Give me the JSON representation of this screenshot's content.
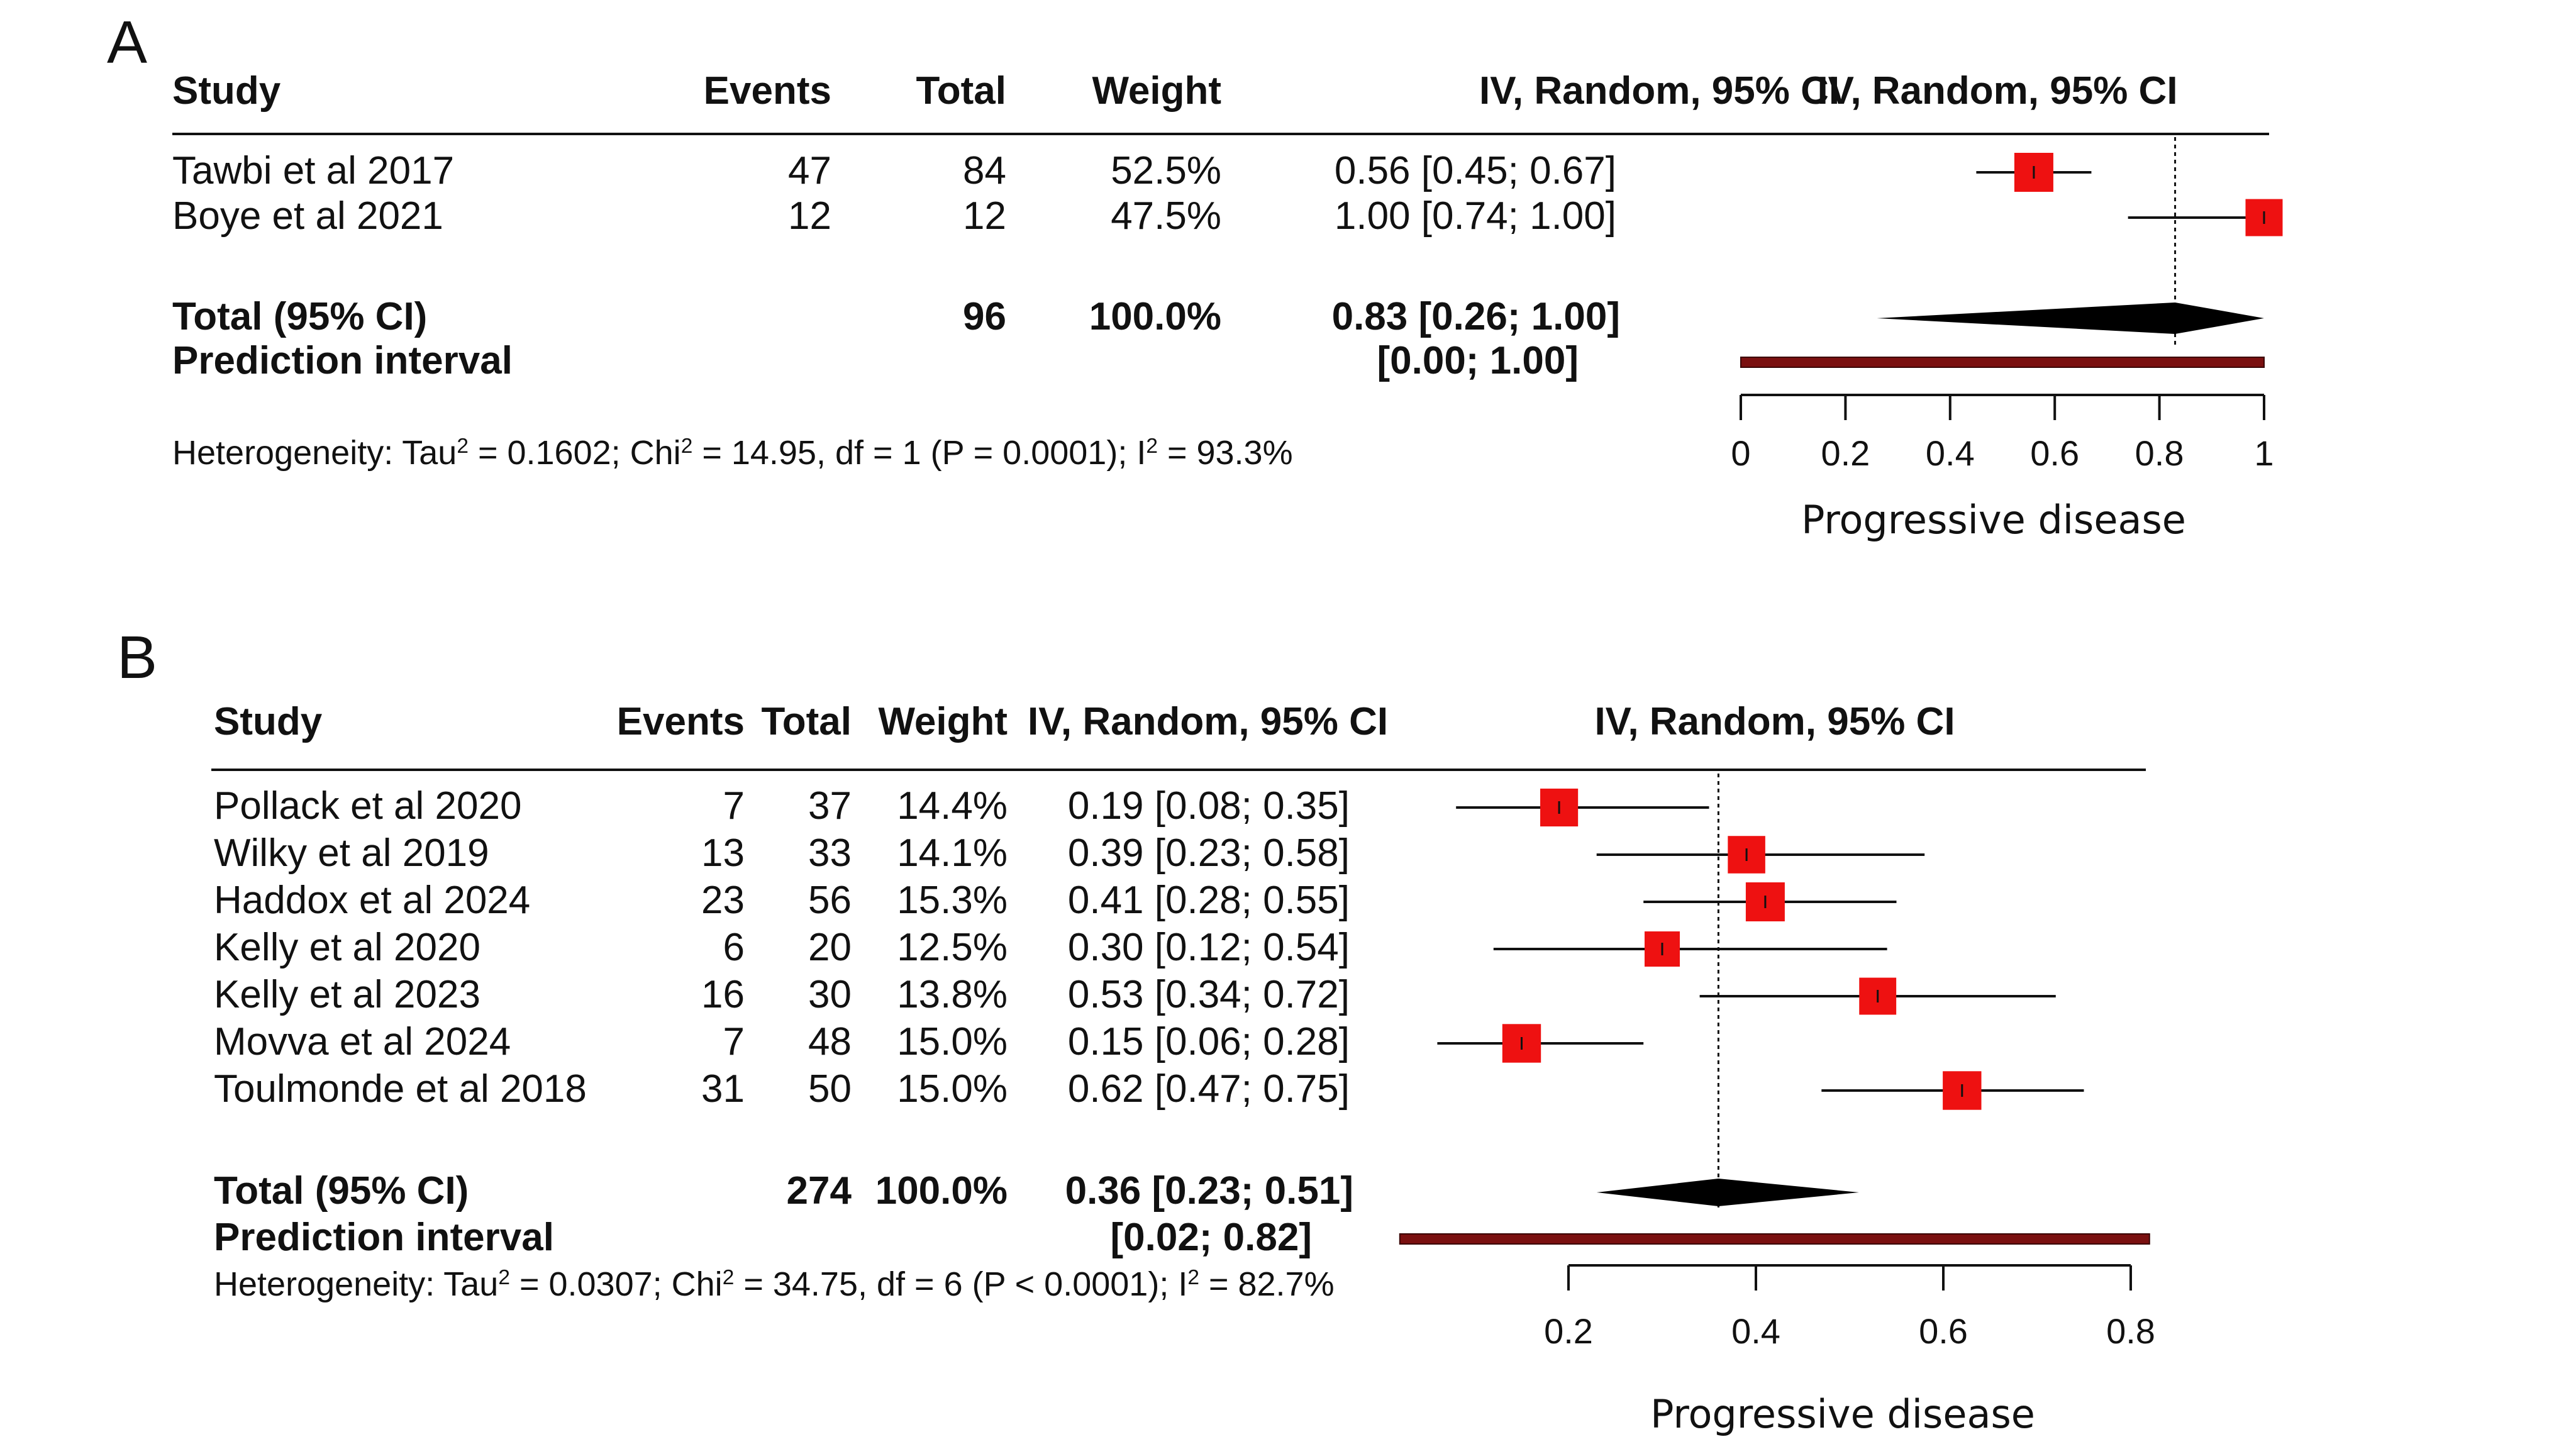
{
  "panels": [
    {
      "letter": "A",
      "headers": {
        "study": "Study",
        "events": "Events",
        "total": "Total",
        "weight": "Weight",
        "ci": "IV, Random, 95% CI",
        "plot": "IV, Random, 95% CI"
      },
      "heterogeneity": {
        "p1": "Heterogeneity: Tau",
        "sup1": "2",
        "p2": " = 0.1602; Chi",
        "sup2": "2",
        "p3": " = 14.95, df = 1 (P = 0.0001); I",
        "sup3": "2",
        "p4": " = 93.3%"
      }
    },
    {
      "letter": "B",
      "headers": {
        "study": "Study",
        "events": "Events",
        "total": "Total",
        "weight": "Weight",
        "ci": "IV, Random, 95% CI",
        "plot": "IV, Random, 95% CI"
      },
      "heterogeneity": {
        "p1": "Heterogeneity: Tau",
        "sup1": "2",
        "p2": " = 0.0307; Chi",
        "sup2": "2",
        "p3": " = 34.75, df = 6 (P < 0.0001); I",
        "sup3": "2",
        "p4": " = 82.7%"
      }
    }
  ],
  "chart_data": [
    {
      "type": "forest",
      "panel": "A",
      "xlabel": "Progressive disease",
      "xlim": [
        0,
        1
      ],
      "ticks": [
        0,
        0.2,
        0.4,
        0.6,
        0.8,
        1
      ],
      "tick_labels": [
        "0",
        "0.2",
        "0.4",
        "0.6",
        "0.8",
        "1"
      ],
      "reference_line": 0.83,
      "studies": [
        {
          "study": "Tawbi et al 2017",
          "events": "47",
          "total": "84",
          "weight": "52.5%",
          "ci_text": "0.56 [0.45; 0.67]",
          "est": 0.56,
          "lo": 0.45,
          "hi": 0.67,
          "w": 52.5
        },
        {
          "study": "Boye et al 2021",
          "events": "12",
          "total": "12",
          "weight": "47.5%",
          "ci_text": "1.00 [0.74; 1.00]",
          "est": 1.0,
          "lo": 0.74,
          "hi": 1.0,
          "w": 47.5
        }
      ],
      "pooled": {
        "label": "Total (95% CI)",
        "total": "96",
        "weight": "100.0%",
        "ci_text": "0.83 [0.26; 1.00]",
        "est": 0.83,
        "lo": 0.26,
        "hi": 1.0
      },
      "prediction": {
        "label": "Prediction interval",
        "ci_text": "[0.00; 1.00]",
        "lo": 0.0,
        "hi": 1.0
      },
      "colors": {
        "square": "#ee1111",
        "prediction": "#7a1010",
        "diamond": "#000000"
      }
    },
    {
      "type": "forest",
      "panel": "B",
      "xlabel": "Progressive disease",
      "xlim": [
        0.2,
        0.8
      ],
      "ticks": [
        0.2,
        0.4,
        0.6,
        0.8
      ],
      "tick_labels": [
        "0.2",
        "0.4",
        "0.6",
        "0.8"
      ],
      "reference_line": 0.36,
      "studies": [
        {
          "study": "Pollack et al 2020",
          "events": "7",
          "total": "37",
          "weight": "14.4%",
          "ci_text": "0.19 [0.08; 0.35]",
          "est": 0.19,
          "lo": 0.08,
          "hi": 0.35,
          "w": 14.4
        },
        {
          "study": "Wilky et al 2019",
          "events": "13",
          "total": "33",
          "weight": "14.1%",
          "ci_text": "0.39 [0.23; 0.58]",
          "est": 0.39,
          "lo": 0.23,
          "hi": 0.58,
          "w": 14.1
        },
        {
          "study": "Haddox et al 2024",
          "events": "23",
          "total": "56",
          "weight": "15.3%",
          "ci_text": "0.41 [0.28; 0.55]",
          "est": 0.41,
          "lo": 0.28,
          "hi": 0.55,
          "w": 15.3
        },
        {
          "study": "Kelly et al 2020",
          "events": "6",
          "total": "20",
          "weight": "12.5%",
          "ci_text": "0.30 [0.12; 0.54]",
          "est": 0.3,
          "lo": 0.12,
          "hi": 0.54,
          "w": 12.5
        },
        {
          "study": "Kelly et al 2023",
          "events": "16",
          "total": "30",
          "weight": "13.8%",
          "ci_text": "0.53 [0.34; 0.72]",
          "est": 0.53,
          "lo": 0.34,
          "hi": 0.72,
          "w": 13.8
        },
        {
          "study": "Movva et al 2024",
          "events": "7",
          "total": "48",
          "weight": "15.0%",
          "ci_text": "0.15 [0.06; 0.28]",
          "est": 0.15,
          "lo": 0.06,
          "hi": 0.28,
          "w": 15.0
        },
        {
          "study": "Toulmonde et al 2018",
          "events": "31",
          "total": "50",
          "weight": "15.0%",
          "ci_text": "0.62 [0.47; 0.75]",
          "est": 0.62,
          "lo": 0.47,
          "hi": 0.75,
          "w": 15.0
        }
      ],
      "pooled": {
        "label": "Total (95% CI)",
        "total": "274",
        "weight": "100.0%",
        "ci_text": "0.36 [0.23; 0.51]",
        "est": 0.36,
        "lo": 0.23,
        "hi": 0.51
      },
      "prediction": {
        "label": "Prediction interval",
        "ci_text": "[0.02; 0.82]",
        "lo": 0.02,
        "hi": 0.82
      },
      "colors": {
        "square": "#ee1111",
        "prediction": "#7a1010",
        "diamond": "#000000"
      }
    }
  ]
}
